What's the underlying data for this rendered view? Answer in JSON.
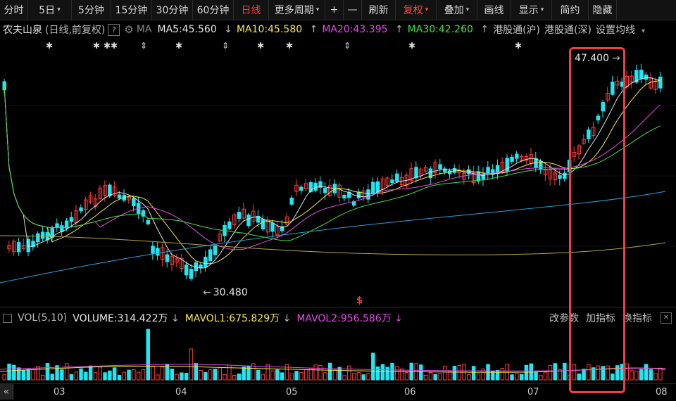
{
  "toolbar": [
    {
      "label": "分时",
      "state": ""
    },
    {
      "label": "5日",
      "state": "",
      "caret": true
    },
    {
      "label": "5分钟",
      "state": ""
    },
    {
      "label": "15分钟",
      "state": ""
    },
    {
      "label": "30分钟",
      "state": ""
    },
    {
      "label": "60分钟",
      "state": ""
    },
    {
      "label": "日线",
      "state": "active"
    },
    {
      "label": "更多周期",
      "state": "",
      "caret": true
    },
    {
      "label": "+",
      "state": ""
    },
    {
      "label": "—",
      "state": ""
    },
    {
      "label": "刷新",
      "state": ""
    },
    {
      "label": "复权",
      "state": "red",
      "caret": true
    },
    {
      "label": "叠加",
      "state": "",
      "caret": true
    },
    {
      "label": "画线",
      "state": ""
    },
    {
      "label": "显示",
      "state": "",
      "caret": true
    },
    {
      "label": "简约",
      "state": ""
    },
    {
      "label": "隐藏",
      "state": ""
    }
  ],
  "legend": {
    "stock_name": "农夫山泉",
    "mode": "(日线,前复权)",
    "help": "?",
    "ma_label": "MA",
    "ma5": "MA5:45.560",
    "ma5_arrow": "↓",
    "ma10": "MA10:45.580",
    "ma10_arrow": "↑",
    "ma20": "MA20:43.395",
    "ma20_arrow": "↑",
    "ma30": "MA30:42.260",
    "ma30_arrow": "↑",
    "hk_sh": "港股通(沪)",
    "hk_sz": "港股通(深)",
    "set_ma": "设置均线",
    "set_ma_caret": "▾"
  },
  "annotations": {
    "high": "47.400",
    "low": "30.480",
    "marker": "$"
  },
  "vol_legend": {
    "name": "VOL(5,10)",
    "volume": "VOLUME:314.422万",
    "volume_arrow": "↓",
    "mavol1": "MAVOL1:675.829万",
    "mavol1_arrow": "↓",
    "mavol2": "MAVOL2:956.586万",
    "mavol2_arrow": "↓",
    "btn_params": "改参数",
    "btn_add": "加指标",
    "btn_switch": "换指标"
  },
  "xaxis": {
    "collapse": "«",
    "months": [
      "03",
      "04",
      "05",
      "06",
      "07",
      "08"
    ]
  },
  "colors": {
    "up": "#ff3b3b",
    "down": "#20e6f2",
    "ma5": "#e0e0e0",
    "ma10": "#f5e84a",
    "ma20": "#e64ae6",
    "ma30": "#44e044",
    "ma60": "#2a9fd6",
    "ma120": "#b0a54a",
    "highlight": "#e8424a"
  },
  "chart_data": {
    "type": "candlestick",
    "series_ma5_latest": 45.56,
    "series_ma10_latest": 45.58,
    "series_ma20_latest": 43.395,
    "series_ma30_latest": 42.26,
    "period_high": 47.4,
    "period_low": 30.48,
    "volume_latest_wan": 314.422,
    "mavol1_wan": 675.829,
    "mavol2_wan": 956.586,
    "x_months": [
      "03",
      "04",
      "05",
      "06",
      "07",
      "08"
    ]
  }
}
